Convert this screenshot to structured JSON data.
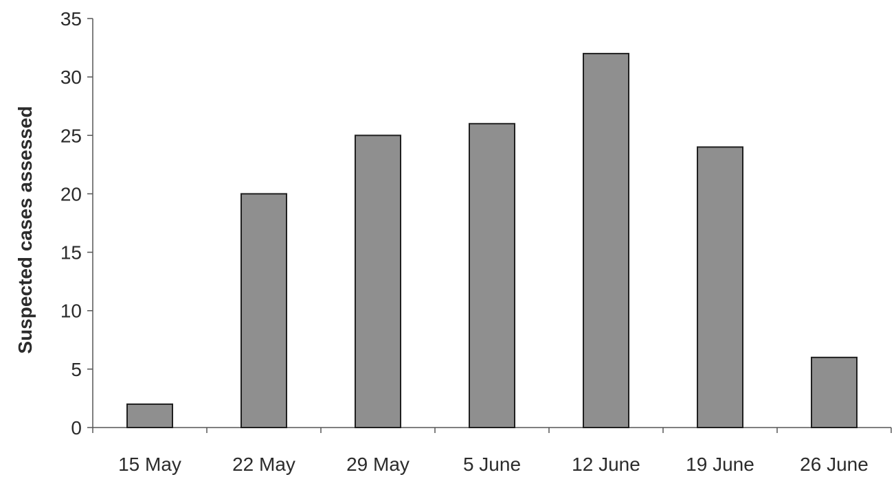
{
  "chart_data": {
    "type": "bar",
    "categories": [
      "15 May",
      "22 May",
      "29 May",
      "5 June",
      "12 June",
      "19 June",
      "26 June"
    ],
    "values": [
      2,
      20,
      25,
      26,
      32,
      24,
      6
    ],
    "title": "",
    "xlabel": "",
    "ylabel": "Suspected cases assessed",
    "ylim": [
      0,
      35
    ],
    "yticks": [
      "0",
      "5",
      "10",
      "15",
      "20",
      "25",
      "30",
      "35"
    ],
    "grid": false,
    "legend": "none",
    "colors": {
      "bar_fill": "#8f8f8f",
      "bar_stroke": "#1f1f1f",
      "axis": "#555555",
      "text": "#2b2b2b"
    }
  }
}
